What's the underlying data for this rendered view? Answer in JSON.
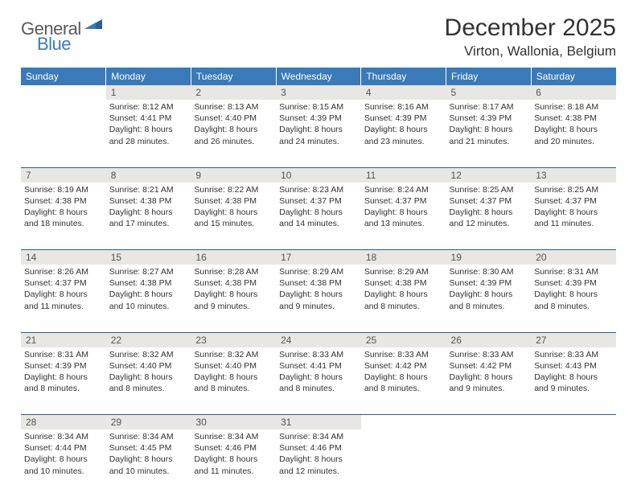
{
  "brand": {
    "text1": "General",
    "text2": "Blue"
  },
  "title": "December 2025",
  "location": "Virton, Wallonia, Belgium",
  "colors": {
    "header_bg": "#3a7ab8",
    "header_text": "#ffffff",
    "daynum_bg": "#e8e7e3",
    "border": "#2b5f8f",
    "body_text": "#333333"
  },
  "weekdays": [
    "Sunday",
    "Monday",
    "Tuesday",
    "Wednesday",
    "Thursday",
    "Friday",
    "Saturday"
  ],
  "weeks": [
    [
      null,
      {
        "n": "1",
        "sr": "8:12 AM",
        "ss": "4:41 PM",
        "dl": "8 hours and 28 minutes."
      },
      {
        "n": "2",
        "sr": "8:13 AM",
        "ss": "4:40 PM",
        "dl": "8 hours and 26 minutes."
      },
      {
        "n": "3",
        "sr": "8:15 AM",
        "ss": "4:39 PM",
        "dl": "8 hours and 24 minutes."
      },
      {
        "n": "4",
        "sr": "8:16 AM",
        "ss": "4:39 PM",
        "dl": "8 hours and 23 minutes."
      },
      {
        "n": "5",
        "sr": "8:17 AM",
        "ss": "4:39 PM",
        "dl": "8 hours and 21 minutes."
      },
      {
        "n": "6",
        "sr": "8:18 AM",
        "ss": "4:38 PM",
        "dl": "8 hours and 20 minutes."
      }
    ],
    [
      {
        "n": "7",
        "sr": "8:19 AM",
        "ss": "4:38 PM",
        "dl": "8 hours and 18 minutes."
      },
      {
        "n": "8",
        "sr": "8:21 AM",
        "ss": "4:38 PM",
        "dl": "8 hours and 17 minutes."
      },
      {
        "n": "9",
        "sr": "8:22 AM",
        "ss": "4:38 PM",
        "dl": "8 hours and 15 minutes."
      },
      {
        "n": "10",
        "sr": "8:23 AM",
        "ss": "4:37 PM",
        "dl": "8 hours and 14 minutes."
      },
      {
        "n": "11",
        "sr": "8:24 AM",
        "ss": "4:37 PM",
        "dl": "8 hours and 13 minutes."
      },
      {
        "n": "12",
        "sr": "8:25 AM",
        "ss": "4:37 PM",
        "dl": "8 hours and 12 minutes."
      },
      {
        "n": "13",
        "sr": "8:25 AM",
        "ss": "4:37 PM",
        "dl": "8 hours and 11 minutes."
      }
    ],
    [
      {
        "n": "14",
        "sr": "8:26 AM",
        "ss": "4:37 PM",
        "dl": "8 hours and 11 minutes."
      },
      {
        "n": "15",
        "sr": "8:27 AM",
        "ss": "4:38 PM",
        "dl": "8 hours and 10 minutes."
      },
      {
        "n": "16",
        "sr": "8:28 AM",
        "ss": "4:38 PM",
        "dl": "8 hours and 9 minutes."
      },
      {
        "n": "17",
        "sr": "8:29 AM",
        "ss": "4:38 PM",
        "dl": "8 hours and 9 minutes."
      },
      {
        "n": "18",
        "sr": "8:29 AM",
        "ss": "4:38 PM",
        "dl": "8 hours and 8 minutes."
      },
      {
        "n": "19",
        "sr": "8:30 AM",
        "ss": "4:39 PM",
        "dl": "8 hours and 8 minutes."
      },
      {
        "n": "20",
        "sr": "8:31 AM",
        "ss": "4:39 PM",
        "dl": "8 hours and 8 minutes."
      }
    ],
    [
      {
        "n": "21",
        "sr": "8:31 AM",
        "ss": "4:39 PM",
        "dl": "8 hours and 8 minutes."
      },
      {
        "n": "22",
        "sr": "8:32 AM",
        "ss": "4:40 PM",
        "dl": "8 hours and 8 minutes."
      },
      {
        "n": "23",
        "sr": "8:32 AM",
        "ss": "4:40 PM",
        "dl": "8 hours and 8 minutes."
      },
      {
        "n": "24",
        "sr": "8:33 AM",
        "ss": "4:41 PM",
        "dl": "8 hours and 8 minutes."
      },
      {
        "n": "25",
        "sr": "8:33 AM",
        "ss": "4:42 PM",
        "dl": "8 hours and 8 minutes."
      },
      {
        "n": "26",
        "sr": "8:33 AM",
        "ss": "4:42 PM",
        "dl": "8 hours and 9 minutes."
      },
      {
        "n": "27",
        "sr": "8:33 AM",
        "ss": "4:43 PM",
        "dl": "8 hours and 9 minutes."
      }
    ],
    [
      {
        "n": "28",
        "sr": "8:34 AM",
        "ss": "4:44 PM",
        "dl": "8 hours and 10 minutes."
      },
      {
        "n": "29",
        "sr": "8:34 AM",
        "ss": "4:45 PM",
        "dl": "8 hours and 10 minutes."
      },
      {
        "n": "30",
        "sr": "8:34 AM",
        "ss": "4:46 PM",
        "dl": "8 hours and 11 minutes."
      },
      {
        "n": "31",
        "sr": "8:34 AM",
        "ss": "4:46 PM",
        "dl": "8 hours and 12 minutes."
      },
      null,
      null,
      null
    ]
  ],
  "labels": {
    "sunrise": "Sunrise:",
    "sunset": "Sunset:",
    "daylight": "Daylight:"
  }
}
